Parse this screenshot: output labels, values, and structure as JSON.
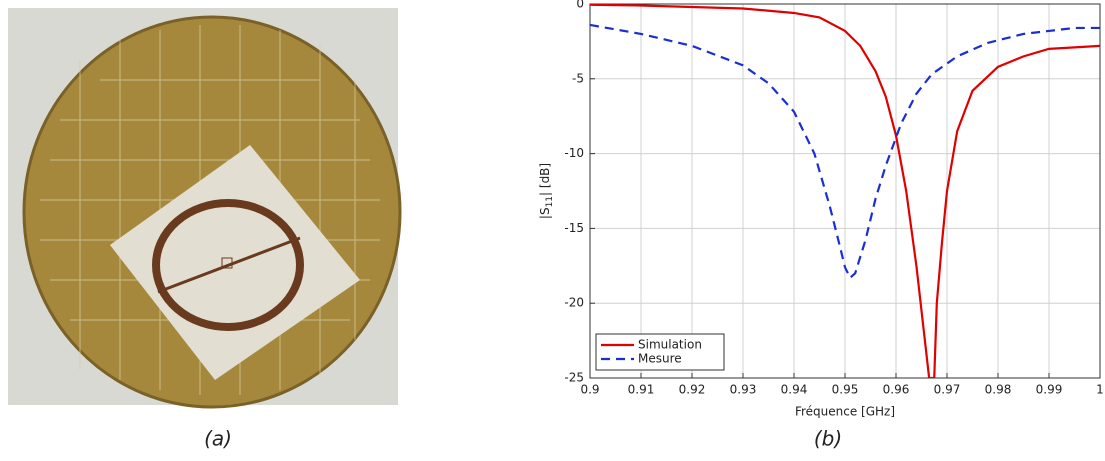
{
  "figure": {
    "caption_a": "(a)",
    "caption_b": "(b)"
  },
  "chart_data": {
    "type": "line",
    "xlabel": "Fréquence [GHz]",
    "ylabel": [
      "|S",
      "11",
      "| [dB]"
    ],
    "xlim": [
      0.9,
      1
    ],
    "ylim": [
      -25,
      0
    ],
    "xticks": [
      0.9,
      0.91,
      0.92,
      0.93,
      0.94,
      0.95,
      0.96,
      0.97,
      0.98,
      0.99,
      1
    ],
    "yticks": [
      -25,
      -20,
      -15,
      -10,
      -5,
      0
    ],
    "grid": true,
    "legend": "lower-left",
    "series": [
      {
        "name": "Simulation",
        "color": "#e00000",
        "style": "solid",
        "x": [
          0.9,
          0.91,
          0.92,
          0.93,
          0.94,
          0.945,
          0.95,
          0.953,
          0.956,
          0.958,
          0.96,
          0.962,
          0.964,
          0.9655,
          0.9665,
          0.9675,
          0.968,
          0.969,
          0.97,
          0.972,
          0.975,
          0.98,
          0.985,
          0.99,
          0.995,
          1
        ],
        "values": [
          -0.05,
          -0.1,
          -0.2,
          -0.3,
          -0.6,
          -0.9,
          -1.8,
          -2.8,
          -4.5,
          -6.2,
          -8.8,
          -12.5,
          -17.5,
          -22,
          -25,
          -25,
          -20,
          -16,
          -12.5,
          -8.5,
          -5.8,
          -4.2,
          -3.5,
          -3,
          -2.9,
          -2.8
        ]
      },
      {
        "name": "Mesure",
        "color": "#1a2ed4",
        "style": "dashed",
        "x": [
          0.9,
          0.91,
          0.92,
          0.93,
          0.935,
          0.94,
          0.944,
          0.947,
          0.949,
          0.95,
          0.951,
          0.952,
          0.954,
          0.956,
          0.958,
          0.961,
          0.964,
          0.967,
          0.972,
          0.978,
          0.985,
          0.99,
          0.995,
          1
        ],
        "values": [
          -1.4,
          -2,
          -2.8,
          -4.1,
          -5.3,
          -7.2,
          -10,
          -13.5,
          -16.2,
          -17.6,
          -18.3,
          -18,
          -15.8,
          -13,
          -10.8,
          -8,
          -6,
          -4.7,
          -3.5,
          -2.6,
          -2,
          -1.8,
          -1.6,
          -1.6
        ]
      }
    ]
  }
}
